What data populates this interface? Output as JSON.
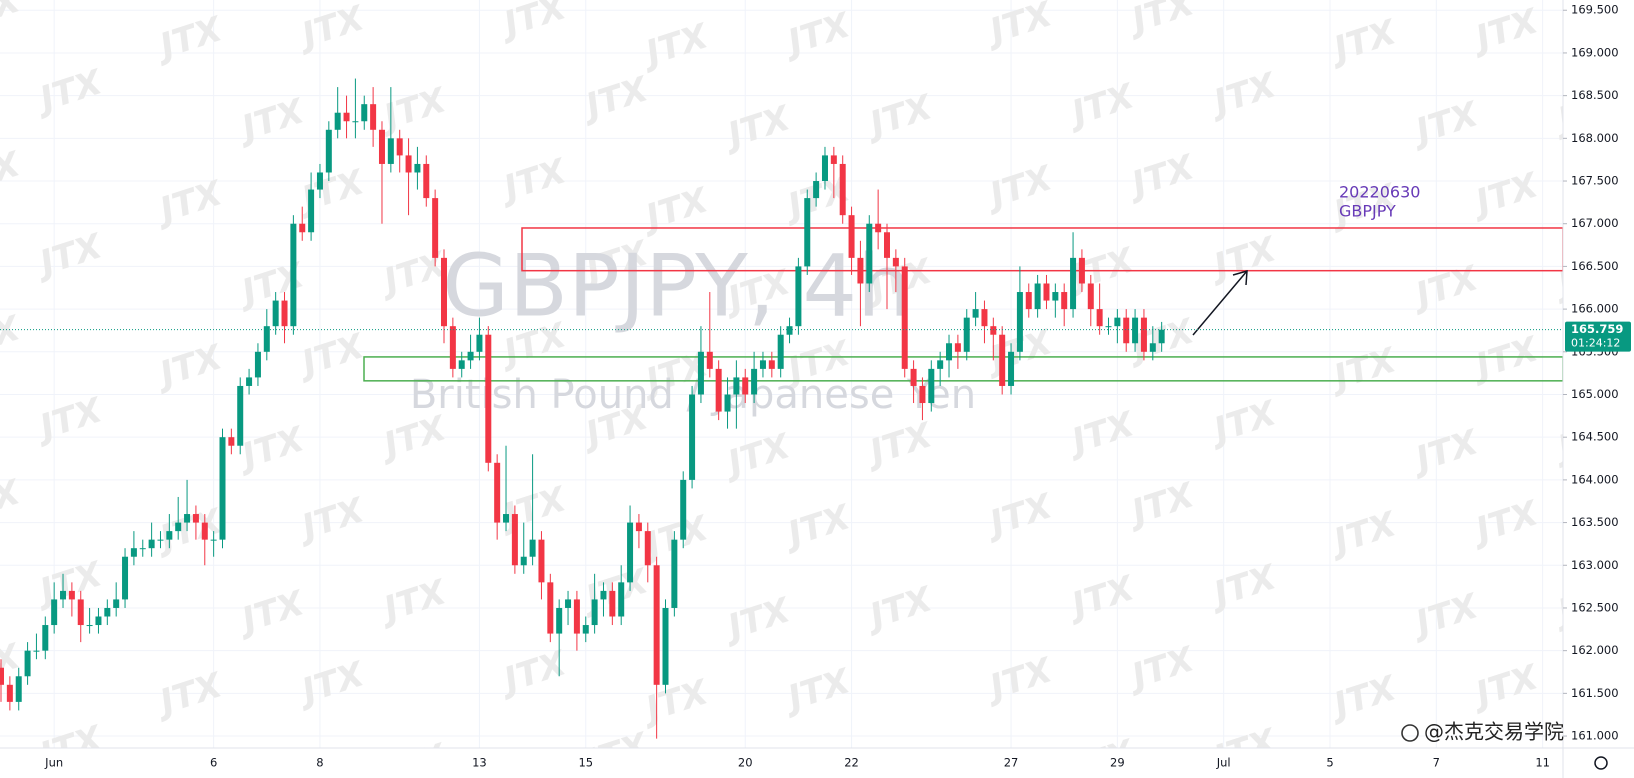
{
  "chart_data": {
    "type": "candlestick",
    "symbol_title": "GBPJPY, 4h",
    "symbol_name": "British Pound / Japanese Yen",
    "watermark": "JTX",
    "annotation": [
      "20220630",
      "GBPJPY"
    ],
    "brand": "@杰克交易学院",
    "countdown": "01:24:12",
    "last_price": 165.759,
    "up_color": "#089981",
    "down_color": "#f23645",
    "annotation_color": "#673ab7",
    "grid": true,
    "ylim": [
      160.86,
      169.62
    ],
    "yticks": [
      {
        "value": 161,
        "label": "161.000"
      },
      {
        "value": 161.5,
        "label": "161.500"
      },
      {
        "value": 162,
        "label": "162.000"
      },
      {
        "value": 162.5,
        "label": "162.500"
      },
      {
        "value": 163,
        "label": "163.000"
      },
      {
        "value": 163.5,
        "label": "163.500"
      },
      {
        "value": 164,
        "label": "164.000"
      },
      {
        "value": 164.5,
        "label": "164.500"
      },
      {
        "value": 165,
        "label": "165.000"
      },
      {
        "value": 165.5,
        "label": "165.500"
      },
      {
        "value": 166,
        "label": "166.000"
      },
      {
        "value": 166.5,
        "label": "166.500"
      },
      {
        "value": 167,
        "label": "167.000"
      },
      {
        "value": 167.5,
        "label": "167.500"
      },
      {
        "value": 168,
        "label": "168.000"
      },
      {
        "value": 168.5,
        "label": "168.500"
      },
      {
        "value": 169,
        "label": "169.000"
      },
      {
        "value": 169.5,
        "label": "169.500"
      }
    ],
    "zones": [
      {
        "top": 166.95,
        "bottom": 166.45,
        "color": "#f23645"
      },
      {
        "top": 165.44,
        "bottom": 165.16,
        "color": "#4caf50"
      }
    ],
    "categories": [
      null,
      null,
      null,
      null,
      null,
      null,
      "Jun",
      null,
      null,
      null,
      null,
      null,
      null,
      null,
      null,
      null,
      null,
      null,
      null,
      null,
      null,
      null,
      null,
      null,
      "6",
      null,
      null,
      null,
      null,
      null,
      null,
      null,
      null,
      null,
      null,
      null,
      "8",
      null,
      null,
      null,
      null,
      null,
      null,
      null,
      null,
      null,
      null,
      null,
      null,
      null,
      null,
      null,
      null,
      null,
      "13",
      null,
      null,
      null,
      null,
      null,
      null,
      null,
      null,
      null,
      null,
      null,
      "15",
      null,
      null,
      null,
      null,
      null,
      null,
      null,
      null,
      null,
      null,
      null,
      null,
      null,
      null,
      null,
      null,
      null,
      "20",
      null,
      null,
      null,
      null,
      null,
      null,
      null,
      null,
      null,
      null,
      null,
      "22",
      null,
      null,
      null,
      null,
      null,
      null,
      null,
      null,
      null,
      null,
      null,
      null,
      null,
      null,
      null,
      null,
      null,
      "27",
      null,
      null,
      null,
      null,
      null,
      null,
      null,
      null,
      null,
      null,
      null,
      "29",
      null,
      null,
      null,
      null,
      null,
      null,
      null,
      null,
      null,
      null,
      null,
      "Jul",
      null,
      null,
      null,
      null,
      null,
      null,
      null,
      null,
      null,
      null,
      null,
      "5",
      null,
      null,
      null,
      null,
      null,
      null,
      null,
      null,
      null,
      null,
      null,
      "7",
      null,
      null,
      null,
      null,
      null,
      null,
      null,
      null,
      null,
      null,
      null,
      "11",
      null
    ],
    "open": [
      161.8,
      161.6,
      161.4,
      161.7,
      162.0,
      162.0,
      162.3,
      162.6,
      162.7,
      162.6,
      162.3,
      162.3,
      162.4,
      162.5,
      162.6,
      163.1,
      163.2,
      163.2,
      163.3,
      163.3,
      163.4,
      163.5,
      163.6,
      163.5,
      163.3,
      163.3,
      164.5,
      164.4,
      165.1,
      165.2,
      165.5,
      165.8,
      166.1,
      165.8,
      167.0,
      166.9,
      167.4,
      167.6,
      168.1,
      168.3,
      168.2,
      168.2,
      168.4,
      168.1,
      167.7,
      168.0,
      167.8,
      167.6,
      167.7,
      167.3,
      166.6,
      165.8,
      165.3,
      165.4,
      165.5,
      165.7,
      164.2,
      163.5,
      163.6,
      163.0,
      163.1,
      163.3,
      162.8,
      162.2,
      162.5,
      162.6,
      162.2,
      162.3,
      162.6,
      162.7,
      162.4,
      162.8,
      163.5,
      163.4,
      163.0,
      161.6,
      162.5,
      163.3,
      164.0,
      165.0,
      165.5,
      165.3,
      164.8,
      165.0,
      165.2,
      165.0,
      165.3,
      165.4,
      165.3,
      165.7,
      165.8,
      166.5,
      167.3,
      167.5,
      167.8,
      167.7,
      167.1,
      166.6,
      166.3,
      167.0,
      166.9,
      166.6,
      166.5,
      165.3,
      165.1,
      164.9,
      165.3,
      165.4,
      165.6,
      165.5,
      165.9,
      166.0,
      165.8,
      165.7,
      165.1,
      165.5,
      166.2,
      166.0,
      166.3,
      166.1,
      166.2,
      166.0,
      166.6,
      166.3,
      166.0,
      165.8,
      165.8,
      165.9,
      165.6,
      165.9,
      165.5,
      165.6,
      null,
      null,
      null,
      null,
      null,
      null,
      null,
      null,
      null,
      null,
      null,
      null,
      null,
      null,
      null,
      null,
      null,
      null,
      null,
      null,
      null,
      null,
      null,
      null,
      null,
      null,
      null,
      null,
      null,
      null,
      null,
      null,
      null,
      null,
      null,
      null,
      null,
      null,
      null,
      null,
      null,
      null,
      null,
      null
    ],
    "high": [
      161.9,
      161.7,
      161.8,
      162.1,
      162.2,
      162.4,
      162.8,
      162.9,
      162.8,
      162.7,
      162.5,
      162.5,
      162.6,
      162.8,
      163.2,
      163.4,
      163.3,
      163.5,
      163.4,
      163.6,
      163.8,
      164.0,
      163.7,
      163.6,
      163.4,
      164.6,
      164.6,
      165.2,
      165.3,
      165.6,
      166.0,
      166.2,
      166.2,
      167.1,
      167.2,
      167.6,
      167.7,
      168.2,
      168.6,
      168.5,
      168.7,
      168.5,
      168.6,
      168.2,
      168.6,
      168.1,
      168.0,
      167.9,
      167.8,
      167.4,
      166.7,
      165.9,
      165.5,
      165.7,
      165.9,
      165.8,
      164.3,
      164.4,
      163.7,
      163.5,
      164.3,
      163.4,
      162.9,
      162.6,
      162.7,
      162.7,
      162.4,
      162.9,
      162.8,
      162.8,
      163.0,
      163.7,
      163.6,
      163.5,
      163.1,
      162.6,
      163.4,
      164.1,
      165.1,
      165.8,
      166.2,
      165.4,
      165.2,
      165.4,
      165.3,
      165.5,
      165.5,
      165.5,
      165.8,
      165.9,
      166.6,
      167.4,
      167.6,
      167.9,
      167.9,
      167.8,
      167.2,
      166.8,
      167.1,
      167.4,
      167.0,
      166.7,
      166.6,
      165.4,
      165.2,
      165.4,
      165.5,
      165.7,
      165.7,
      166.0,
      166.2,
      166.1,
      165.9,
      165.8,
      165.6,
      166.5,
      166.3,
      166.4,
      166.4,
      166.3,
      166.3,
      166.9,
      166.7,
      166.4,
      166.3,
      165.9,
      166.0,
      166.0,
      166.0,
      166.0,
      165.8,
      165.85,
      null,
      null,
      null,
      null,
      null,
      null,
      null,
      null,
      null,
      null,
      null,
      null,
      null,
      null,
      null,
      null,
      null,
      null,
      null,
      null,
      null,
      null,
      null,
      null,
      null,
      null,
      null,
      null,
      null,
      null,
      null,
      null,
      null,
      null,
      null,
      null,
      null,
      null,
      null,
      null,
      null,
      null,
      null,
      null
    ],
    "low": [
      161.4,
      161.3,
      161.3,
      161.6,
      161.9,
      161.9,
      162.2,
      162.5,
      162.4,
      162.1,
      162.2,
      162.2,
      162.3,
      162.4,
      162.5,
      163.0,
      163.1,
      163.1,
      163.2,
      163.2,
      163.3,
      163.4,
      163.3,
      163.0,
      163.1,
      163.2,
      164.3,
      164.3,
      165.0,
      165.1,
      165.4,
      165.7,
      165.6,
      165.7,
      166.8,
      166.8,
      167.3,
      167.5,
      168.0,
      168.0,
      168.0,
      168.1,
      167.9,
      167.0,
      167.6,
      167.6,
      167.1,
      167.4,
      167.2,
      166.5,
      165.6,
      165.2,
      165.2,
      165.3,
      165.4,
      164.1,
      163.3,
      163.4,
      162.9,
      162.9,
      163.0,
      162.6,
      162.1,
      161.7,
      162.3,
      162.0,
      162.1,
      162.2,
      162.4,
      162.3,
      162.3,
      162.7,
      163.2,
      162.8,
      160.97,
      161.5,
      162.4,
      163.2,
      163.9,
      164.9,
      165.2,
      164.7,
      164.6,
      164.6,
      164.9,
      164.9,
      165.2,
      165.2,
      165.2,
      165.6,
      165.7,
      166.4,
      167.2,
      167.4,
      167.3,
      167.0,
      166.4,
      165.8,
      166.2,
      166.7,
      166.0,
      166.2,
      165.2,
      164.9,
      164.7,
      164.8,
      165.1,
      165.2,
      165.3,
      165.4,
      165.8,
      165.6,
      165.4,
      165.0,
      165.0,
      165.4,
      165.9,
      165.9,
      166.0,
      165.9,
      165.8,
      165.9,
      166.2,
      165.8,
      165.7,
      165.7,
      165.6,
      165.5,
      165.5,
      165.4,
      165.4,
      165.5,
      null,
      null,
      null,
      null,
      null,
      null,
      null,
      null,
      null,
      null,
      null,
      null,
      null,
      null,
      null,
      null,
      null,
      null,
      null,
      null,
      null,
      null,
      null,
      null,
      null,
      null,
      null,
      null,
      null,
      null,
      null,
      null,
      null,
      null,
      null,
      null,
      null,
      null,
      null,
      null,
      null,
      null,
      null,
      null
    ],
    "close": [
      161.6,
      161.4,
      161.7,
      162.0,
      162.0,
      162.3,
      162.6,
      162.7,
      162.6,
      162.3,
      162.3,
      162.4,
      162.5,
      162.6,
      163.1,
      163.2,
      163.2,
      163.3,
      163.3,
      163.4,
      163.5,
      163.6,
      163.5,
      163.3,
      163.3,
      164.5,
      164.4,
      165.1,
      165.2,
      165.5,
      165.8,
      166.1,
      165.8,
      167.0,
      166.9,
      167.4,
      167.6,
      168.1,
      168.3,
      168.2,
      168.2,
      168.4,
      168.1,
      167.7,
      168.0,
      167.8,
      167.6,
      167.7,
      167.3,
      166.6,
      165.8,
      165.3,
      165.4,
      165.5,
      165.7,
      164.2,
      163.5,
      163.6,
      163.0,
      163.1,
      163.3,
      162.8,
      162.2,
      162.5,
      162.6,
      162.2,
      162.3,
      162.6,
      162.7,
      162.4,
      162.8,
      163.5,
      163.4,
      163.0,
      161.6,
      162.5,
      163.3,
      164.0,
      165.0,
      165.5,
      165.3,
      164.8,
      165.0,
      165.2,
      165.0,
      165.3,
      165.4,
      165.3,
      165.7,
      165.8,
      166.5,
      167.3,
      167.5,
      167.8,
      167.7,
      167.1,
      166.6,
      166.3,
      167.0,
      166.9,
      166.6,
      166.5,
      165.3,
      165.1,
      164.9,
      165.3,
      165.4,
      165.6,
      165.5,
      165.9,
      166.0,
      165.8,
      165.7,
      165.1,
      165.5,
      166.2,
      166.0,
      166.3,
      166.1,
      166.2,
      166.0,
      166.6,
      166.3,
      166.0,
      165.8,
      165.8,
      165.9,
      165.6,
      165.9,
      165.5,
      165.6,
      165.759,
      null,
      null,
      null,
      null,
      null,
      null,
      null,
      null,
      null,
      null,
      null,
      null,
      null,
      null,
      null,
      null,
      null,
      null,
      null,
      null,
      null,
      null,
      null,
      null,
      null,
      null,
      null,
      null,
      null,
      null,
      null,
      null,
      null,
      null,
      null,
      null,
      null,
      null,
      null,
      null,
      null,
      null,
      null,
      null
    ]
  }
}
